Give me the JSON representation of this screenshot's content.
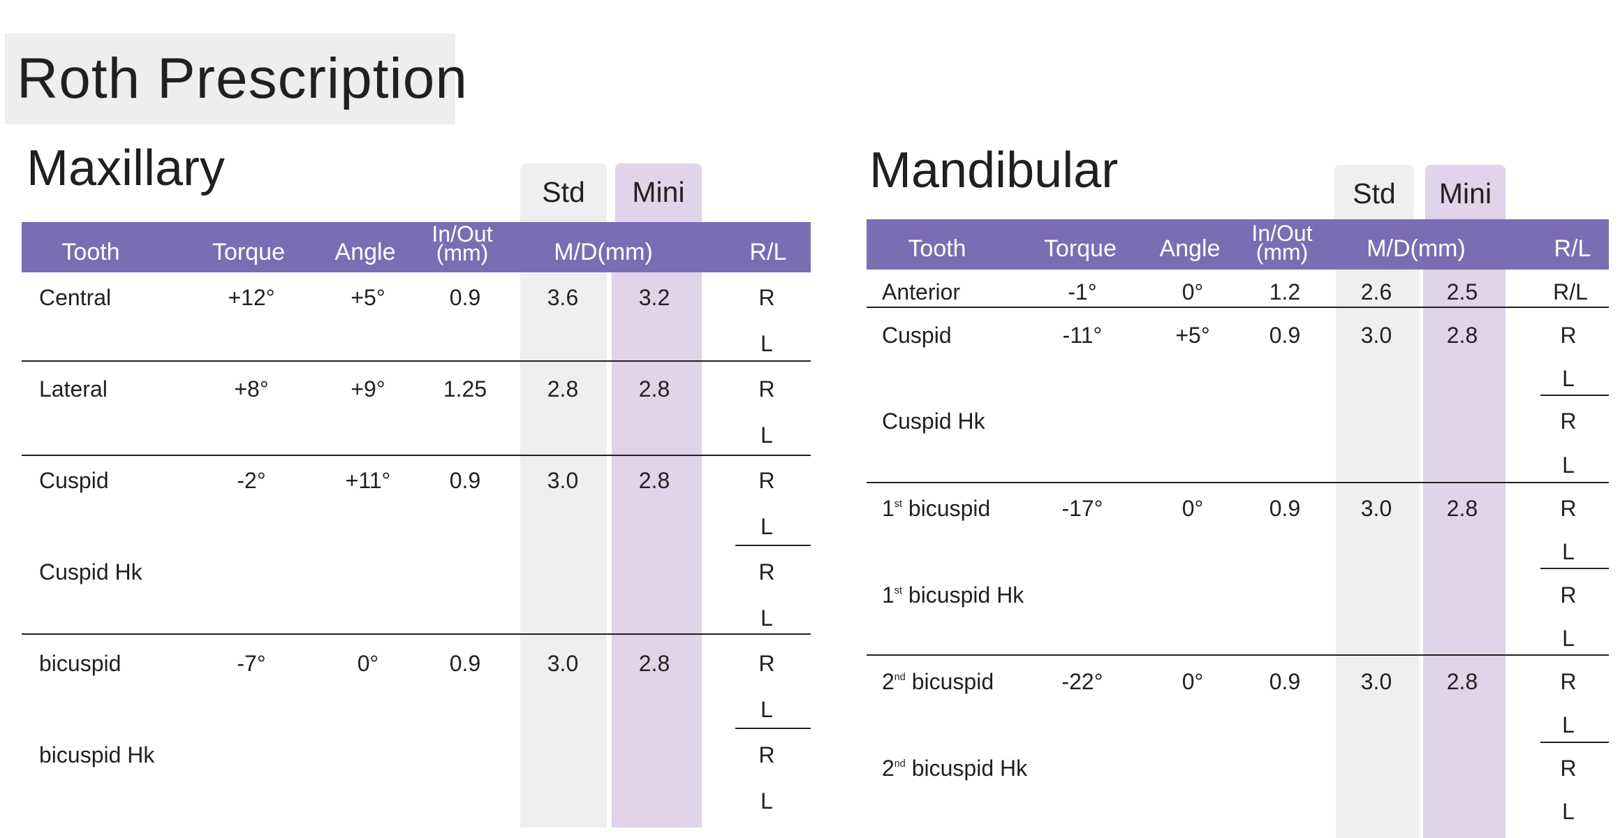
{
  "title": "Roth Prescription",
  "maxillary": {
    "title": "Maxillary",
    "tab_std": "Std",
    "tab_mini": "Mini",
    "headers": {
      "tooth": "Tooth",
      "torque": "Torque",
      "angle": "Angle",
      "inout_1": "In/Out",
      "inout_2": "(mm)",
      "md": "M/D(mm)",
      "rl": "R/L"
    },
    "rows": [
      {
        "tooth": "Central",
        "torque": "+12°",
        "angle": "+5°",
        "inout": "0.9",
        "std": "3.6",
        "mini": "3.2"
      },
      {
        "tooth": "Lateral",
        "torque": "+8°",
        "angle": "+9°",
        "inout": "1.25",
        "std": "2.8",
        "mini": "2.8"
      },
      {
        "tooth": "Cuspid",
        "torque": "-2°",
        "angle": "+11°",
        "inout": "0.9",
        "std": "3.0",
        "mini": "2.8"
      },
      {
        "tooth": "Cuspid Hk",
        "torque": "",
        "angle": "",
        "inout": "",
        "std": "",
        "mini": ""
      },
      {
        "tooth": "bicuspid",
        "torque": "-7°",
        "angle": "0°",
        "inout": "0.9",
        "std": "3.0",
        "mini": "2.8"
      },
      {
        "tooth": "bicuspid Hk",
        "torque": "",
        "angle": "",
        "inout": "",
        "std": "",
        "mini": ""
      }
    ],
    "rl": {
      "r": "R",
      "l": "L"
    }
  },
  "mandibular": {
    "title": "Mandibular",
    "tab_std": "Std",
    "tab_mini": "Mini",
    "headers": {
      "tooth": "Tooth",
      "torque": "Torque",
      "angle": "Angle",
      "inout_1": "In/Out",
      "inout_2": "(mm)",
      "md": "M/D(mm)",
      "rl": "R/L"
    },
    "anterior": {
      "tooth": "Anterior",
      "torque": "-1°",
      "angle": "0°",
      "inout": "1.2",
      "std": "2.6",
      "mini": "2.5",
      "rl": "R/L"
    },
    "rows": [
      {
        "tooth": "Cuspid",
        "torque": "-11°",
        "angle": "+5°",
        "inout": "0.9",
        "std": "3.0",
        "mini": "2.8"
      },
      {
        "tooth": "Cuspid Hk"
      },
      {
        "tooth_num": "1",
        "tooth_sup": "st",
        "tooth": " bicuspid",
        "torque": "-17°",
        "angle": "0°",
        "inout": "0.9",
        "std": "3.0",
        "mini": "2.8"
      },
      {
        "tooth_num": "1",
        "tooth_sup": "st",
        "tooth": " bicuspid Hk"
      },
      {
        "tooth_num": "2",
        "tooth_sup": "nd",
        "tooth": " bicuspid",
        "torque": "-22°",
        "angle": "0°",
        "inout": "0.9",
        "std": "3.0",
        "mini": "2.8"
      },
      {
        "tooth_num": "2",
        "tooth_sup": "nd",
        "tooth": " bicuspid Hk"
      }
    ],
    "rl": {
      "r": "R",
      "l": "L"
    }
  }
}
